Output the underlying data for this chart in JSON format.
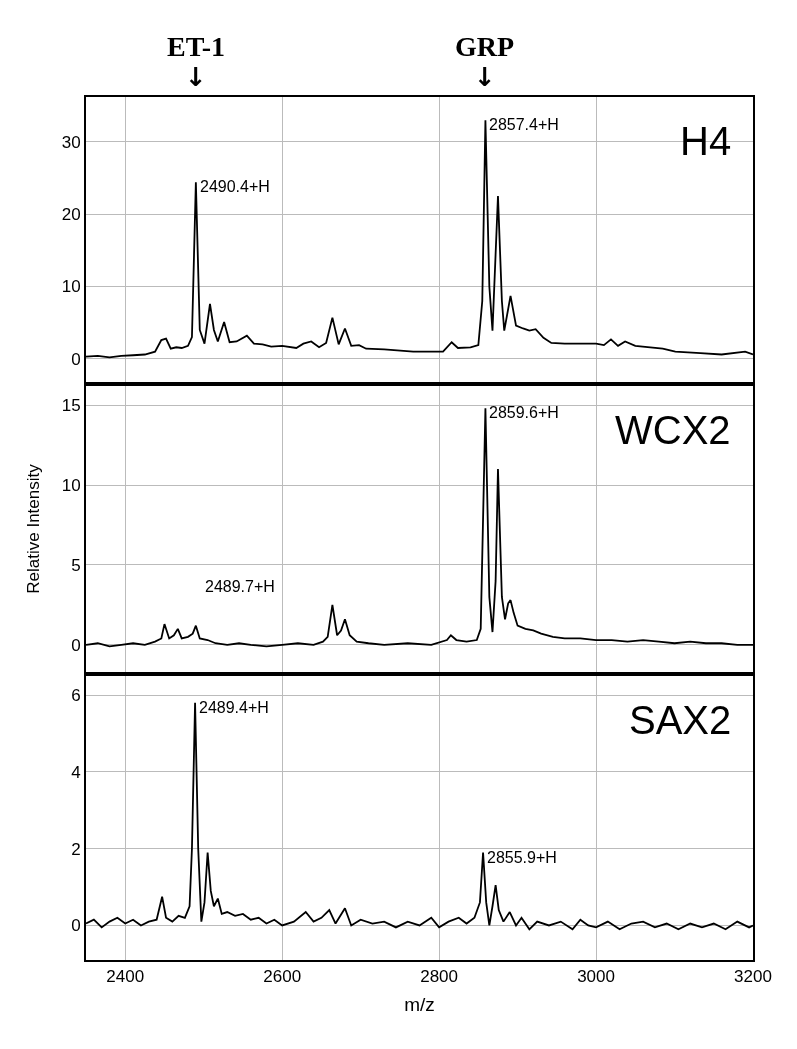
{
  "chart_data": [
    {
      "type": "line",
      "xlim": [
        2350,
        3200
      ],
      "xticks": [
        2400,
        2600,
        2800,
        3000,
        3200
      ],
      "ylim": [
        -3.2,
        36.2
      ],
      "yticks": [
        0,
        10,
        20,
        30
      ],
      "grid": true,
      "tick_labels": "y",
      "annotations": [
        "H4",
        "ET-1",
        "↓",
        "GRP",
        "↓",
        {
          "text": "2490.4+H",
          "x": 2490,
          "y": 24.4
        },
        {
          "text": "2857.4+H",
          "x": 2859,
          "y": 33.0
        }
      ],
      "series": [
        {
          "color": "#000000",
          "x": [
            2350,
            2365,
            2380,
            2395,
            2410,
            2425,
            2438,
            2446,
            2452,
            2458,
            2465,
            2472,
            2480,
            2485,
            2490,
            2495,
            2501,
            2508,
            2513,
            2518,
            2526,
            2533,
            2542,
            2555,
            2564,
            2575,
            2586,
            2600,
            2618,
            2627,
            2637,
            2647,
            2656,
            2664,
            2672,
            2680,
            2688,
            2698,
            2707,
            2730,
            2767,
            2790,
            2805,
            2816,
            2824,
            2840,
            2850,
            2855,
            2859,
            2864,
            2868,
            2875,
            2880,
            2883,
            2891,
            2898,
            2907,
            2915,
            2923,
            2933,
            2943,
            2960,
            2975,
            3000,
            3010,
            3019,
            3028,
            3037,
            3050,
            3069,
            3085,
            3101,
            3133,
            3160,
            3190,
            3200
          ],
          "values": [
            0.3,
            0.4,
            0.2,
            0.4,
            0.5,
            0.6,
            1.0,
            2.6,
            2.8,
            1.4,
            1.6,
            1.5,
            1.8,
            3,
            24.4,
            4,
            2.1,
            7.6,
            4,
            2.4,
            5.1,
            2.3,
            2.4,
            3.2,
            2.1,
            2.0,
            1.7,
            1.8,
            1.5,
            2.1,
            2.4,
            1.6,
            2.2,
            5.7,
            2.0,
            4.2,
            1.8,
            1.9,
            1.4,
            1.3,
            1.0,
            1.0,
            1.0,
            2.3,
            1.5,
            1.6,
            1.9,
            8,
            33.0,
            10,
            3.9,
            22.5,
            8,
            3.9,
            8.7,
            4.6,
            4.2,
            3.9,
            4.1,
            2.9,
            2.2,
            2.1,
            2.1,
            2.1,
            1.9,
            2.7,
            1.8,
            2.4,
            1.8,
            1.6,
            1.4,
            1.0,
            0.8,
            0.6,
            1.0,
            0.6
          ]
        }
      ]
    },
    {
      "type": "line",
      "xlim": [
        2350,
        3200
      ],
      "xticks": [
        2400,
        2600,
        2800,
        3000,
        3200
      ],
      "ylim": [
        -1.7,
        16.2
      ],
      "yticks": [
        0,
        5,
        10,
        15
      ],
      "grid": true,
      "tick_labels": "y",
      "ylabel": "Relative Intensity",
      "annotations": [
        "WCX2",
        "2489.7+H",
        {
          "text": "2859.6+H",
          "x": 2859,
          "y": 14.8
        }
      ],
      "series": [
        {
          "color": "#000000",
          "x": [
            2350,
            2365,
            2380,
            2395,
            2410,
            2425,
            2438,
            2446,
            2450,
            2456,
            2462,
            2467,
            2472,
            2480,
            2486,
            2490,
            2495,
            2505,
            2515,
            2530,
            2545,
            2560,
            2580,
            2600,
            2620,
            2640,
            2652,
            2658,
            2664,
            2670,
            2675,
            2680,
            2686,
            2695,
            2710,
            2730,
            2760,
            2790,
            2810,
            2815,
            2822,
            2835,
            2848,
            2853,
            2859,
            2864,
            2868,
            2872,
            2875,
            2880,
            2884,
            2888,
            2891,
            2895,
            2900,
            2910,
            2920,
            2930,
            2945,
            2960,
            2980,
            3000,
            3020,
            3040,
            3060,
            3080,
            3100,
            3120,
            3140,
            3160,
            3180,
            3200
          ],
          "values": [
            0.0,
            0.1,
            -0.1,
            0.0,
            0.1,
            0.0,
            0.2,
            0.4,
            1.3,
            0.4,
            0.6,
            1.0,
            0.4,
            0.5,
            0.7,
            1.2,
            0.4,
            0.3,
            0.1,
            0.0,
            0.1,
            0.0,
            -0.1,
            0.0,
            0.1,
            0.0,
            0.2,
            0.5,
            2.5,
            0.6,
            0.9,
            1.6,
            0.6,
            0.2,
            0.1,
            0.0,
            0.1,
            0.0,
            0.3,
            0.6,
            0.3,
            0.2,
            0.3,
            1.0,
            14.8,
            3.0,
            0.8,
            4.0,
            11.0,
            3.0,
            1.6,
            2.6,
            2.8,
            2.0,
            1.2,
            1.0,
            0.9,
            0.7,
            0.5,
            0.4,
            0.4,
            0.3,
            0.3,
            0.2,
            0.3,
            0.2,
            0.1,
            0.2,
            0.1,
            0.1,
            0.0,
            0.0
          ]
        }
      ]
    },
    {
      "type": "line",
      "xlim": [
        2350,
        3200
      ],
      "xticks": [
        2400,
        2600,
        2800,
        3000,
        3200
      ],
      "ylim": [
        -0.9,
        6.5
      ],
      "yticks": [
        0,
        2,
        4,
        6
      ],
      "grid": true,
      "xlabel": "m/z",
      "annotations": [
        "SAX2",
        {
          "text": "2489.4+H",
          "x": 2489,
          "y": 5.8
        },
        {
          "text": "2855.9+H",
          "x": 2856,
          "y": 1.9
        }
      ],
      "series": [
        {
          "color": "#000000",
          "x": [
            2350,
            2360,
            2370,
            2380,
            2390,
            2400,
            2410,
            2420,
            2430,
            2440,
            2447,
            2452,
            2460,
            2468,
            2476,
            2482,
            2485,
            2489,
            2493,
            2497,
            2501,
            2505,
            2509,
            2513,
            2518,
            2523,
            2530,
            2540,
            2550,
            2560,
            2570,
            2580,
            2590,
            2600,
            2615,
            2630,
            2640,
            2650,
            2660,
            2668,
            2680,
            2688,
            2700,
            2715,
            2730,
            2745,
            2760,
            2775,
            2790,
            2800,
            2812,
            2825,
            2835,
            2845,
            2852,
            2856,
            2860,
            2864,
            2868,
            2872,
            2876,
            2882,
            2890,
            2898,
            2905,
            2915,
            2925,
            2940,
            2955,
            2970,
            2980,
            2990,
            3000,
            3015,
            3030,
            3045,
            3060,
            3075,
            3090,
            3105,
            3120,
            3135,
            3150,
            3165,
            3180,
            3195,
            3200
          ],
          "values": [
            0.05,
            0.15,
            -0.05,
            0.1,
            0.2,
            0.05,
            0.15,
            0.0,
            0.1,
            0.15,
            0.75,
            0.2,
            0.1,
            0.25,
            0.2,
            0.5,
            2.0,
            5.8,
            2.0,
            0.1,
            0.6,
            1.9,
            0.9,
            0.5,
            0.7,
            0.3,
            0.35,
            0.25,
            0.3,
            0.15,
            0.2,
            0.05,
            0.15,
            0.0,
            0.1,
            0.35,
            0.1,
            0.2,
            0.4,
            0.05,
            0.45,
            0.0,
            0.15,
            0.05,
            0.1,
            -0.05,
            0.1,
            0.0,
            0.2,
            -0.05,
            0.1,
            0.2,
            0.05,
            0.2,
            0.6,
            1.9,
            0.6,
            0.0,
            0.5,
            1.05,
            0.4,
            0.1,
            0.35,
            0.0,
            0.2,
            -0.1,
            0.1,
            0.0,
            0.1,
            -0.1,
            0.15,
            0.0,
            -0.05,
            0.1,
            -0.1,
            0.05,
            0.1,
            -0.05,
            0.05,
            -0.1,
            0.05,
            -0.05,
            0.05,
            -0.1,
            0.1,
            -0.05,
            0.0
          ]
        }
      ]
    }
  ]
}
